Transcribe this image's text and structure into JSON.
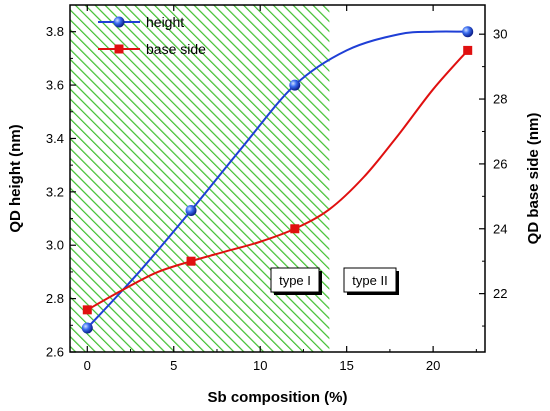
{
  "chart_data": {
    "type": "line",
    "xlabel": "Sb composition (%)",
    "ylabel_left": "QD height (nm)",
    "ylabel_right": "QD base side (nm)",
    "xlim": [
      -1,
      23
    ],
    "ylim_left": [
      2.6,
      3.9
    ],
    "ylim_right": [
      20.2,
      30.9
    ],
    "x_ticks": [
      0,
      5,
      10,
      15,
      20
    ],
    "y_ticks_left": [
      2.6,
      2.8,
      3.0,
      3.2,
      3.4,
      3.6,
      3.8
    ],
    "y_ticks_right": [
      22,
      24,
      26,
      28,
      30
    ],
    "x_tick_labels": [
      "0",
      "5",
      "10",
      "15",
      "20"
    ],
    "y_tick_labels_left": [
      "2.6",
      "2.8",
      "3.0",
      "3.2",
      "3.4",
      "3.6",
      "3.8"
    ],
    "y_tick_labels_right": [
      "22",
      "24",
      "26",
      "28",
      "30"
    ],
    "series": [
      {
        "name": "height",
        "axis": "left",
        "color": "#1f3fd6",
        "marker": "sphere",
        "x": [
          0,
          6,
          12,
          22
        ],
        "y": [
          2.69,
          3.13,
          3.6,
          3.8
        ],
        "curve_x": [
          0,
          3,
          6,
          9,
          12,
          15,
          18,
          20,
          22
        ],
        "curve_y": [
          2.69,
          2.9,
          3.13,
          3.37,
          3.6,
          3.73,
          3.79,
          3.8,
          3.8
        ]
      },
      {
        "name": "base side",
        "axis": "right",
        "color": "#e01010",
        "marker": "square",
        "x": [
          0,
          6,
          12,
          22
        ],
        "y": [
          21.5,
          23.0,
          24.0,
          29.5
        ],
        "curve_x": [
          0,
          2,
          4,
          6,
          8,
          10,
          12,
          14,
          16,
          18,
          20,
          22
        ],
        "curve_y": [
          21.5,
          22.1,
          22.65,
          23.0,
          23.3,
          23.6,
          24.0,
          24.6,
          25.6,
          26.9,
          28.3,
          29.5
        ]
      }
    ],
    "regions": [
      {
        "label": "type I",
        "x_start": -1,
        "x_end": 14,
        "fill": "hatched-green"
      },
      {
        "label": "type II",
        "x_start": 14,
        "x_end": 23,
        "fill": "none"
      }
    ],
    "legend_position": "top-left",
    "grid": false
  }
}
